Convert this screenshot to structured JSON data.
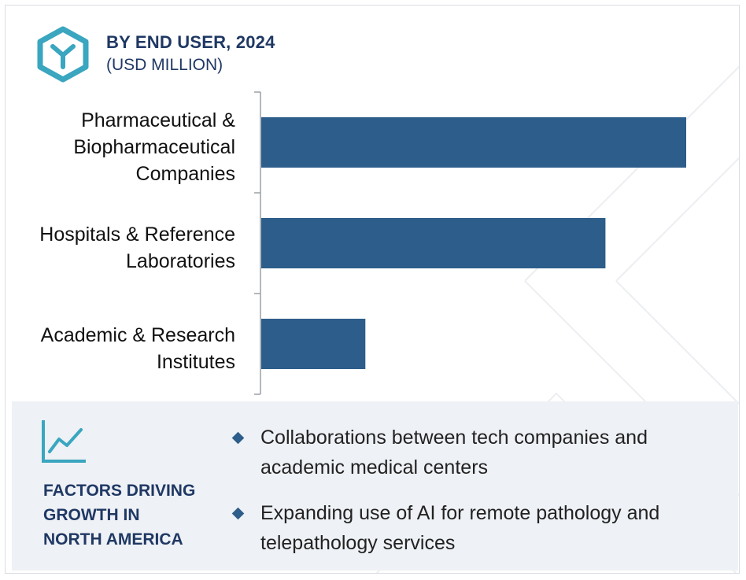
{
  "header": {
    "title": "BY END USER, 2024",
    "subtitle": "(USD MILLION)",
    "logo_icon": "hexagon-y-logo-icon"
  },
  "colors": {
    "bar": "#2d5d8a",
    "heading": "#1f3864",
    "logo": "#3aa6bf",
    "footer_bg": "#eef1f5"
  },
  "chart_data": {
    "type": "bar",
    "orientation": "horizontal",
    "categories": [
      "Pharmaceutical &\nBiopharmaceutical\nCompanies",
      "Hospitals & Reference\nLaboratories",
      "Academic & Research\nInstitutes"
    ],
    "values": [
      100,
      81,
      24.5
    ],
    "title": "BY END USER, 2024",
    "subtitle": "(USD MILLION)",
    "xlabel": "",
    "ylabel": "",
    "xlim": [
      0,
      100
    ],
    "grid": false,
    "legend": "none"
  },
  "footer": {
    "icon": "trend-line-chart-icon",
    "title": "FACTORS DRIVING\nGROWTH IN\nNORTH AMERICA",
    "bullets": [
      "Collaborations between tech companies and academic medical centers",
      "Expanding use of AI for remote pathology and telepathology services"
    ]
  }
}
